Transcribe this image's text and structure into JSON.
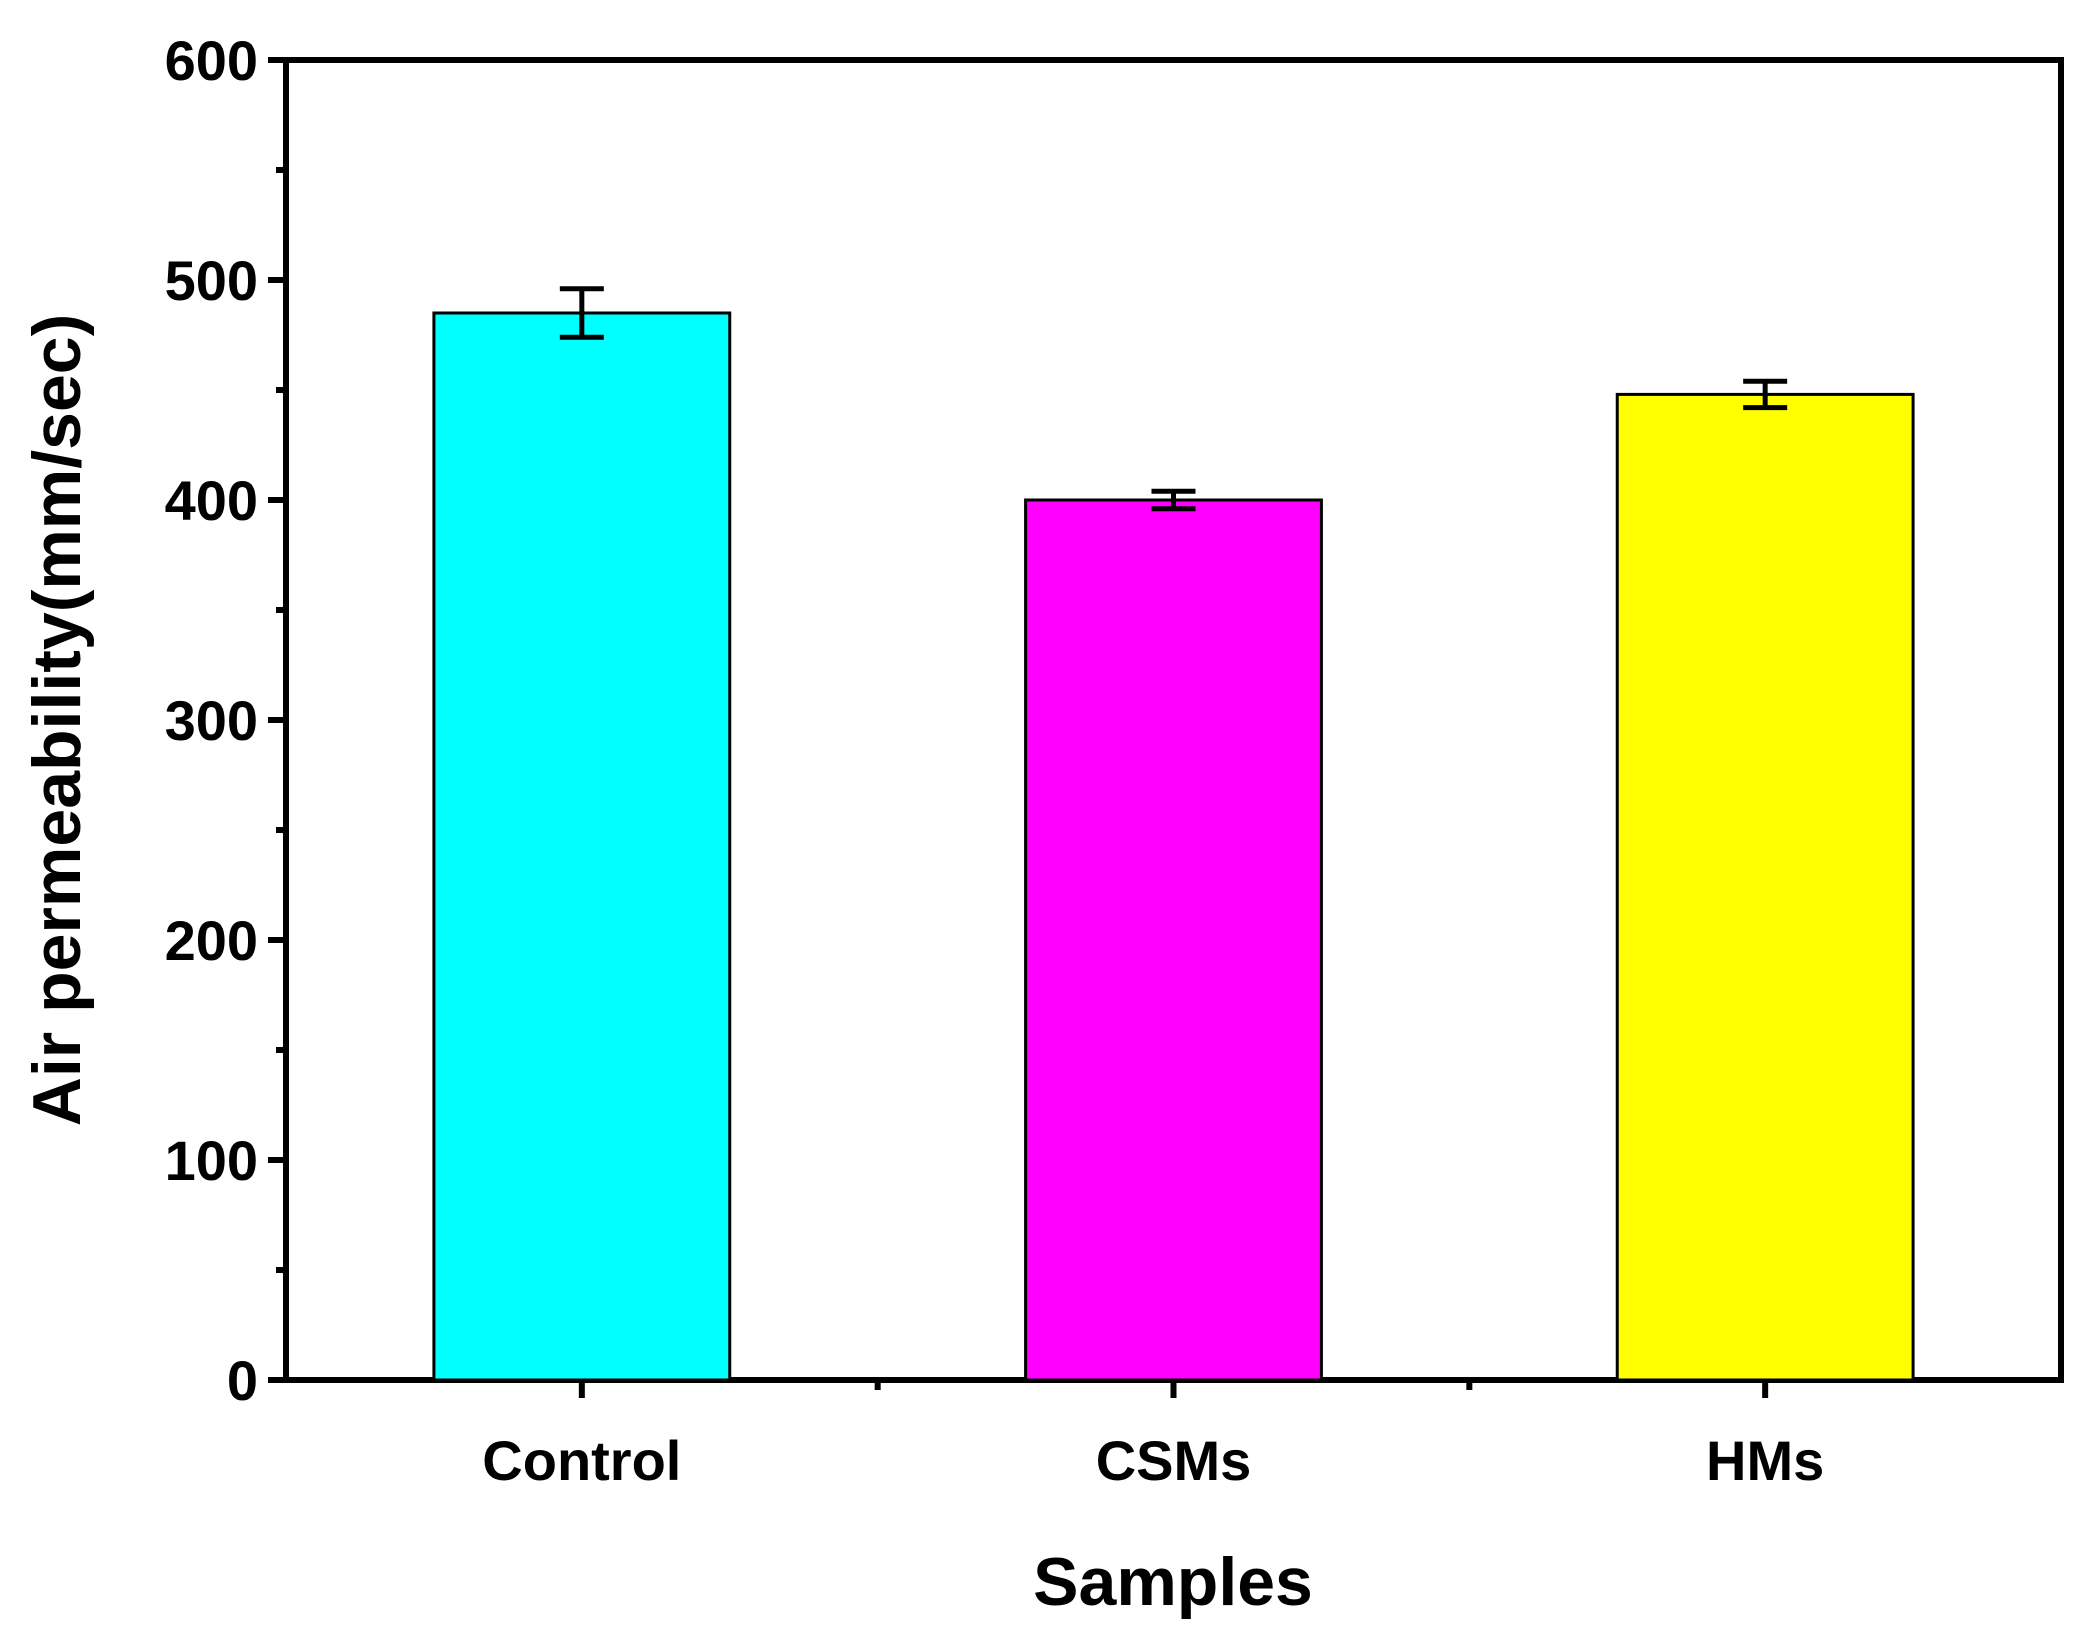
{
  "chart_data": {
    "type": "bar",
    "title": "",
    "xlabel": "Samples",
    "ylabel": "Air permeability(mm/sec)",
    "categories": [
      "Control",
      "CSMs",
      "HMs"
    ],
    "values": [
      485,
      400,
      448
    ],
    "errors": [
      11,
      4,
      6
    ],
    "colors": [
      "#00FFFF",
      "#FF00FF",
      "#FFFF00"
    ],
    "ylim": [
      0,
      600
    ],
    "yticks": [
      0,
      100,
      200,
      300,
      400,
      500,
      600
    ],
    "grid": false,
    "legend": "none"
  }
}
